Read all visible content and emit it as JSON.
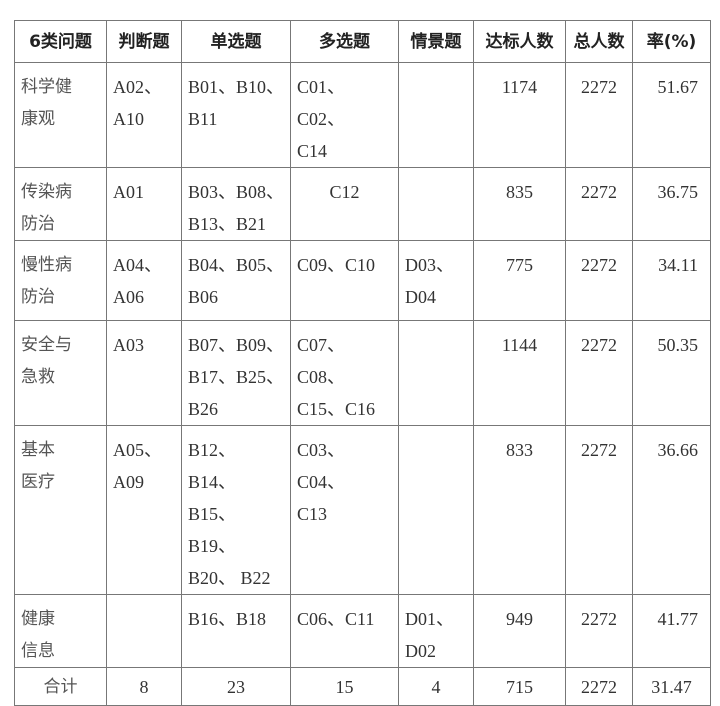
{
  "headers": [
    "6类问题",
    "判断题",
    "单选题",
    "多选题",
    "情景题",
    "达标人数",
    "总人数",
    "率(%)"
  ],
  "rows": [
    {
      "category": "科学健\n康观",
      "judgment": "A02、\nA10",
      "single": "B01、B10、\nB11",
      "multiple": "C01、C02、\nC14",
      "scenario": "",
      "qualified": "1174",
      "total": "2272",
      "rate": "51.67"
    },
    {
      "category": "传染病\n防治",
      "judgment": "A01",
      "single": "B03、B08、\nB13、B21",
      "multiple": "C12",
      "scenario": "",
      "qualified": "835",
      "total": "2272",
      "rate": "36.75"
    },
    {
      "category": "慢性病\n防治",
      "judgment": "A04、\nA06",
      "single": "B04、B05、\nB06",
      "multiple": "C09、C10",
      "scenario": "D03、\nD04",
      "qualified": "775",
      "total": "2272",
      "rate": "34.11"
    },
    {
      "category": "安全与\n急救",
      "judgment": "A03",
      "single": "B07、B09、\nB17、B25、\nB26",
      "multiple": "C07、C08、\nC15、C16",
      "scenario": "",
      "qualified": "1144",
      "total": "2272",
      "rate": "50.35"
    },
    {
      "category": "基本\n医疗",
      "judgment": "A05、\nA09",
      "single": "B12、 B14、\nB15、 B19、\nB20、 B22",
      "multiple": "C03、C04、\nC13",
      "scenario": "",
      "qualified": "833",
      "total": "2272",
      "rate": "36.66"
    },
    {
      "category": "健康\n信息",
      "judgment": "",
      "single": "B16、B18",
      "multiple": "C06、C11",
      "scenario": "D01、\nD02",
      "qualified": "949",
      "total": "2272",
      "rate": "41.77"
    }
  ],
  "total_row": {
    "category": "合计",
    "judgment": "8",
    "single": "23",
    "multiple": "15",
    "scenario": "4",
    "qualified": "715",
    "total": "2272",
    "rate": "31.47"
  }
}
